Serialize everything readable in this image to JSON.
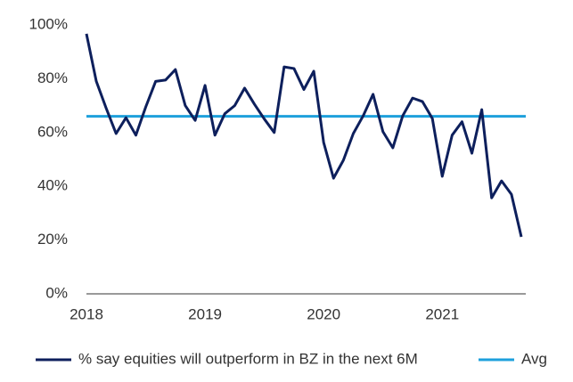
{
  "chart_data": {
    "type": "line",
    "categories": [
      "2018",
      null,
      null,
      null,
      null,
      null,
      null,
      null,
      null,
      null,
      null,
      null,
      "2019",
      null,
      null,
      null,
      null,
      null,
      null,
      null,
      null,
      null,
      null,
      null,
      "2020",
      null,
      null,
      null,
      null,
      null,
      null,
      null,
      null,
      null,
      null,
      null,
      "2021",
      null,
      null,
      null,
      null,
      null,
      null,
      null,
      null
    ],
    "series": [
      {
        "name": "% say equities will outperform in BZ in the next 6M",
        "color": "#0d1f5c",
        "values": [
          96.7,
          79,
          69,
          59.6,
          65.5,
          59,
          69.5,
          79,
          79.5,
          83.4,
          70,
          64.5,
          77.5,
          59,
          67,
          70,
          76.5,
          70.5,
          65,
          60,
          84.4,
          83.8,
          76,
          82.8,
          56.3,
          43,
          49.7,
          59.6,
          66.2,
          74.2,
          60.3,
          54.3,
          66.2,
          72.8,
          71.5,
          65.2,
          43.7,
          59,
          64,
          52.3,
          68.5,
          35.7,
          42,
          37,
          21.2
        ]
      }
    ],
    "reference_lines": [
      {
        "name": "Avg",
        "value": 66,
        "color": "#1ea0dc"
      }
    ],
    "ylim": [
      0,
      100
    ],
    "yticks": [
      {
        "value": 0,
        "label": "0%"
      },
      {
        "value": 20,
        "label": "20%"
      },
      {
        "value": 40,
        "label": "40%"
      },
      {
        "value": 60,
        "label": "60%"
      },
      {
        "value": 80,
        "label": "80%"
      },
      {
        "value": 100,
        "label": "100%"
      }
    ],
    "grid": false
  }
}
